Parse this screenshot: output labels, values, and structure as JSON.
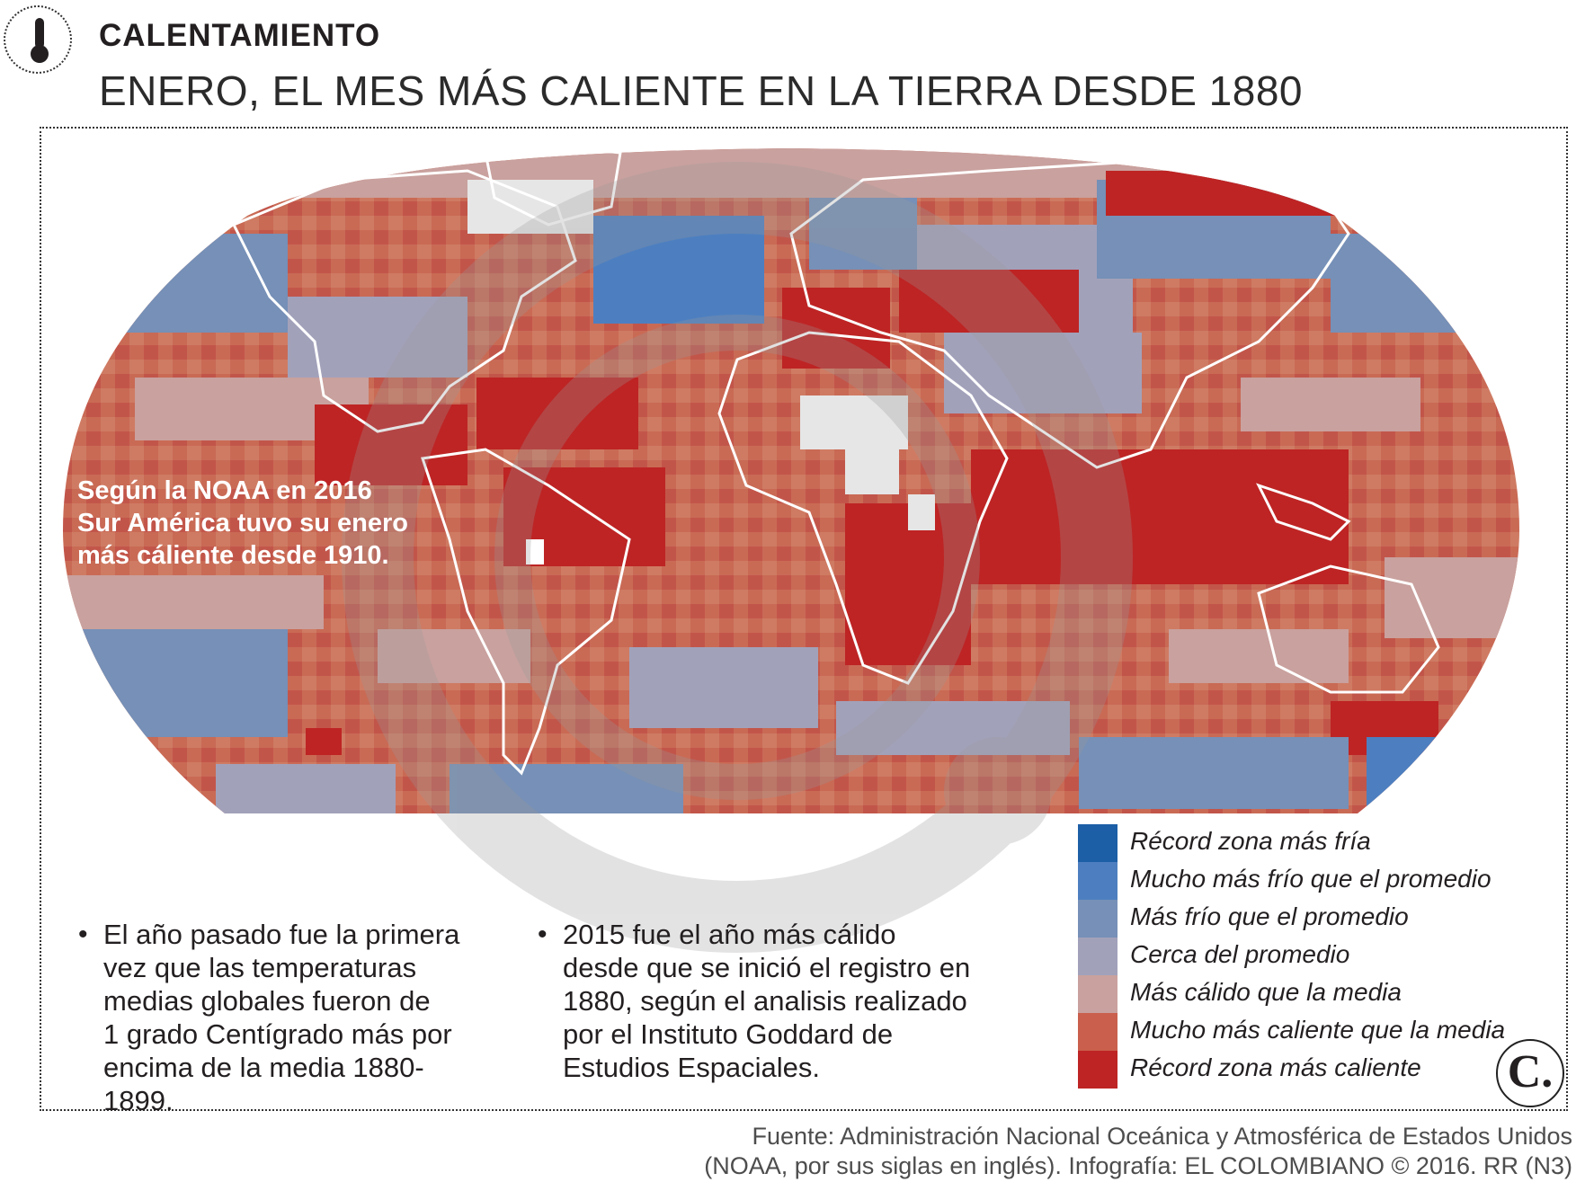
{
  "header": {
    "section_label": "CALENTAMIENTO",
    "title": "ENERO, EL MES MÁS CALIENTE EN LA TIERRA DESDE 1880",
    "icon": "thermometer-icon"
  },
  "map": {
    "callout_lines": [
      "Según la NOAA en 2016",
      "Sur América tuvo su enero",
      "más cáliente desde 1910."
    ],
    "watermark": "camera-lens-watermark"
  },
  "legend": {
    "items": [
      {
        "label": "Récord zona más fría",
        "color": "#1c5fa6"
      },
      {
        "label": "Mucho más frío que el promedio",
        "color": "#4d7fc0"
      },
      {
        "label": "Más frío que el promedio",
        "color": "#7690b7"
      },
      {
        "label": "Cerca del promedio",
        "color": "#a2a1ba"
      },
      {
        "label": "Más cálido que la media",
        "color": "#c9a19e"
      },
      {
        "label": "Mucho más caliente que la media",
        "color": "#c95f4c"
      },
      {
        "label": "Récord zona más caliente",
        "color": "#be2424"
      }
    ]
  },
  "notes": [
    {
      "lines": [
        "El año pasado fue la primera",
        "vez que las temperaturas",
        "medias globales fueron de",
        "1 grado Centígrado más por",
        "encima de la media 1880-1899."
      ]
    },
    {
      "lines": [
        "2015 fue el año más cálido",
        "desde que se inició el registro en",
        "1880, según el analisis realizado",
        "por el Instituto Goddard de",
        "Estudios Espaciales."
      ]
    }
  ],
  "source": {
    "line1": "Fuente:  Administración Nacional Oceánica y Atmosférica de Estados Unidos",
    "line2": "(NOAA, por sus siglas en inglés). Infografía: EL COLOMBIANO © 2016. RR (N3)"
  },
  "logo": {
    "text": "C."
  }
}
